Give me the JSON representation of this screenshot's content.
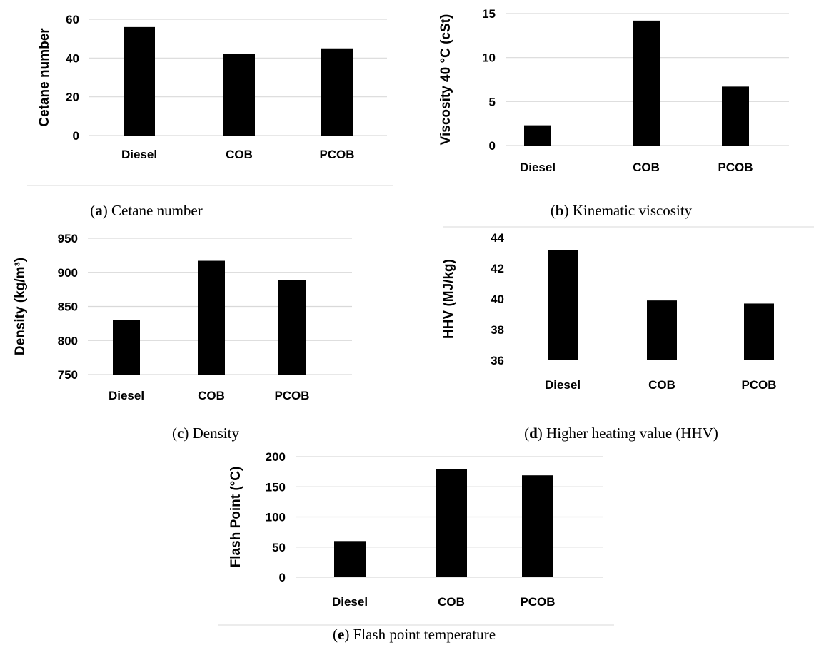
{
  "chart_data": [
    {
      "id": "a",
      "type": "bar",
      "categories": [
        "Diesel",
        "COB",
        "PCOB"
      ],
      "values": [
        56,
        42,
        45
      ],
      "ylabel": "Cetane number",
      "ylim": [
        0,
        60
      ],
      "yticks": [
        "0",
        "20",
        "40",
        "60"
      ],
      "grid": true,
      "caption_letter": "a",
      "caption_text": " Cetane number",
      "bar_color": "#000000"
    },
    {
      "id": "b",
      "type": "bar",
      "categories": [
        "Diesel",
        "COB",
        "PCOB"
      ],
      "values": [
        2.3,
        14.2,
        6.7
      ],
      "ylabel": "Viscosity 40 °C (cSt)",
      "ylim": [
        0,
        15
      ],
      "yticks": [
        "0",
        "5",
        "10",
        "15"
      ],
      "grid": true,
      "caption_letter": "b",
      "caption_text": " Kinematic viscosity",
      "bar_color": "#000000"
    },
    {
      "id": "c",
      "type": "bar",
      "categories": [
        "Diesel",
        "COB",
        "PCOB"
      ],
      "values": [
        830,
        917,
        889
      ],
      "ylabel": "Density (kg/m³)",
      "ylim": [
        750,
        950
      ],
      "yticks": [
        "750",
        "800",
        "850",
        "900",
        "950"
      ],
      "grid": true,
      "caption_letter": "c",
      "caption_text": " Density",
      "bar_color": "#000000"
    },
    {
      "id": "d",
      "type": "bar",
      "categories": [
        "Diesel",
        "COB",
        "PCOB"
      ],
      "values": [
        43.2,
        39.9,
        39.7
      ],
      "ylabel": "HHV (MJ/kg)",
      "ylim": [
        36,
        44
      ],
      "yticks": [
        "36",
        "38",
        "40",
        "42",
        "44"
      ],
      "grid": false,
      "caption_letter": "d",
      "caption_text": " Higher heating value (HHV)",
      "bar_color": "#000000"
    },
    {
      "id": "e",
      "type": "bar",
      "categories": [
        "Diesel",
        "COB",
        "PCOB"
      ],
      "values": [
        60,
        179,
        169
      ],
      "ylabel": "Flash Point (°C)",
      "ylim": [
        0,
        200
      ],
      "yticks": [
        "0",
        "50",
        "100",
        "150",
        "200"
      ],
      "grid": true,
      "caption_letter": "e",
      "caption_text": " Flash point temperature",
      "bar_color": "#000000"
    }
  ]
}
